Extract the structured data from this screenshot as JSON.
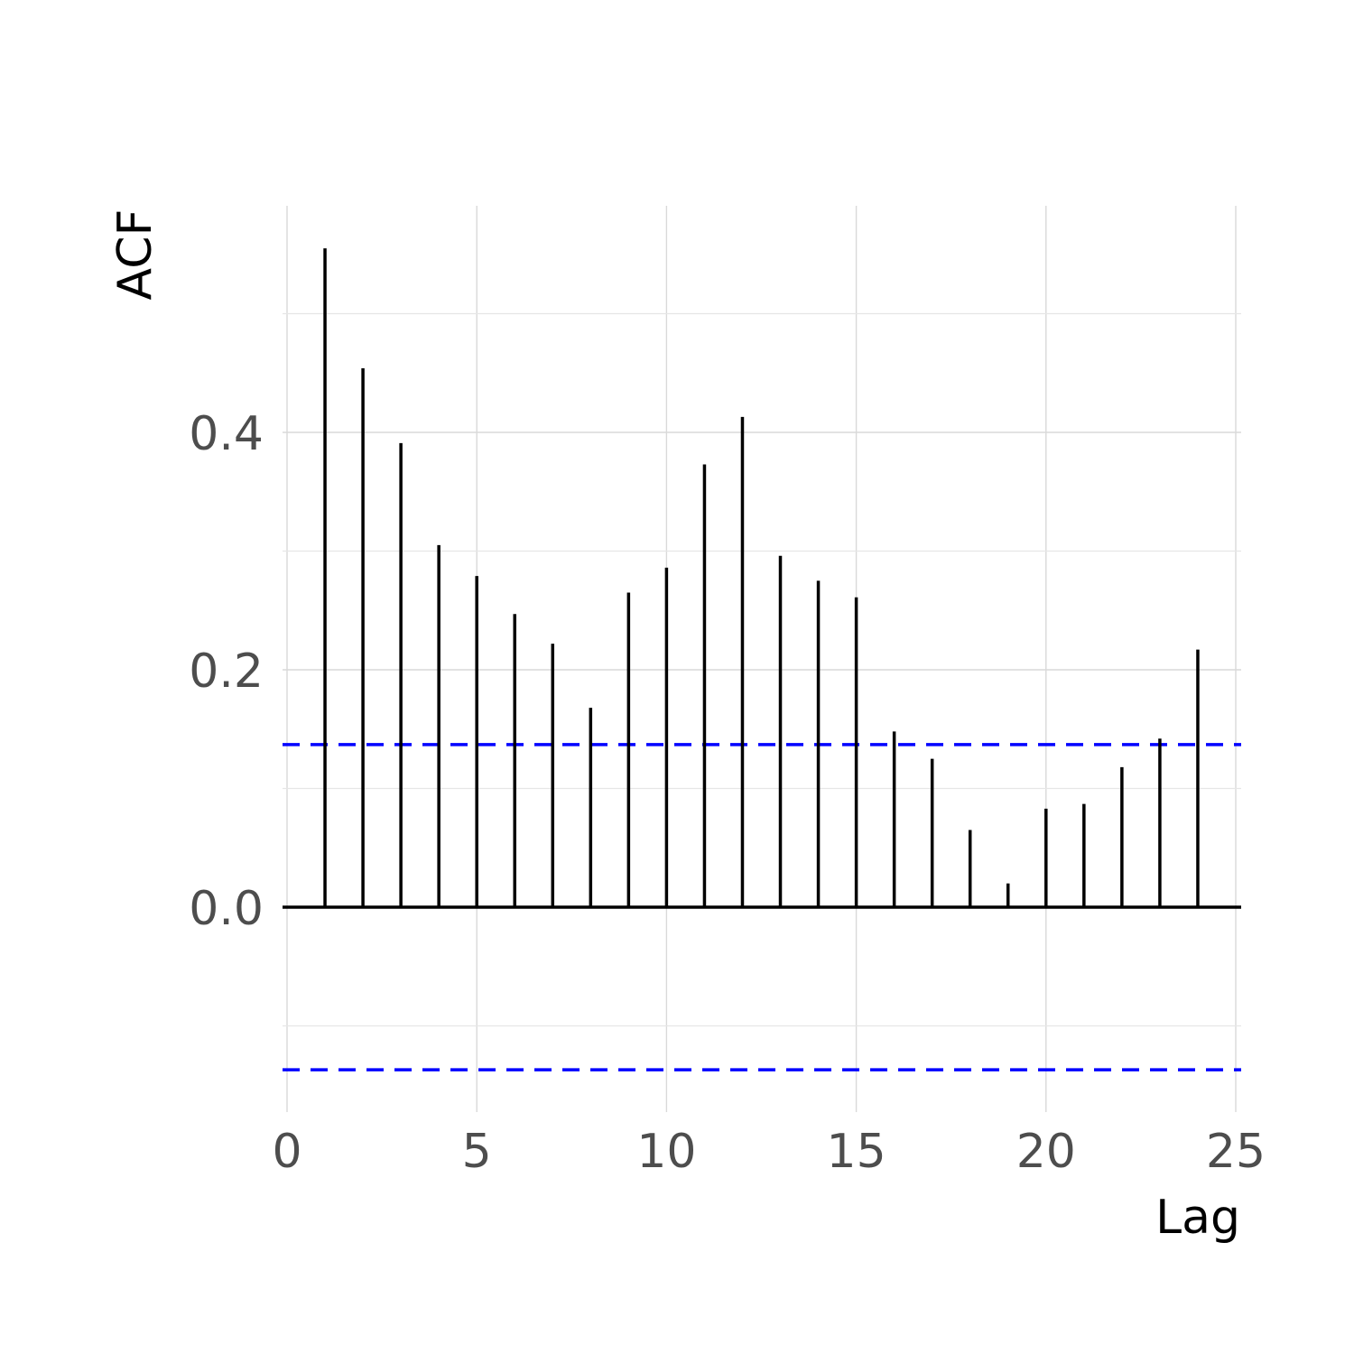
{
  "chart_data": {
    "type": "bar",
    "subtype": "acf-stem",
    "xlabel": "Lag",
    "ylabel": "ACF",
    "xlim": [
      0,
      25
    ],
    "ylim": [
      -0.17,
      0.59
    ],
    "x_ticks": [
      0,
      5,
      10,
      15,
      20,
      25
    ],
    "y_ticks": [
      0.0,
      0.2,
      0.4
    ],
    "y_tick_labels": [
      "0.0",
      "0.2",
      "0.4"
    ],
    "grid": true,
    "confidence_band": {
      "upper": 0.137,
      "lower": -0.137,
      "color": "#0000ff",
      "style": "dashed"
    },
    "zero_line": true,
    "series": [
      {
        "x": [
          1,
          2,
          3,
          4,
          5,
          6,
          7,
          8,
          9,
          10,
          11,
          12,
          13,
          14,
          15,
          16,
          17,
          18,
          19,
          20,
          21,
          22,
          23,
          24
        ],
        "values": [
          0.555,
          0.454,
          0.391,
          0.305,
          0.279,
          0.247,
          0.222,
          0.168,
          0.265,
          0.286,
          0.373,
          0.413,
          0.296,
          0.275,
          0.261,
          0.148,
          0.125,
          0.065,
          0.02,
          0.083,
          0.087,
          0.118,
          0.142,
          0.217
        ],
        "color": "#000000"
      }
    ]
  }
}
